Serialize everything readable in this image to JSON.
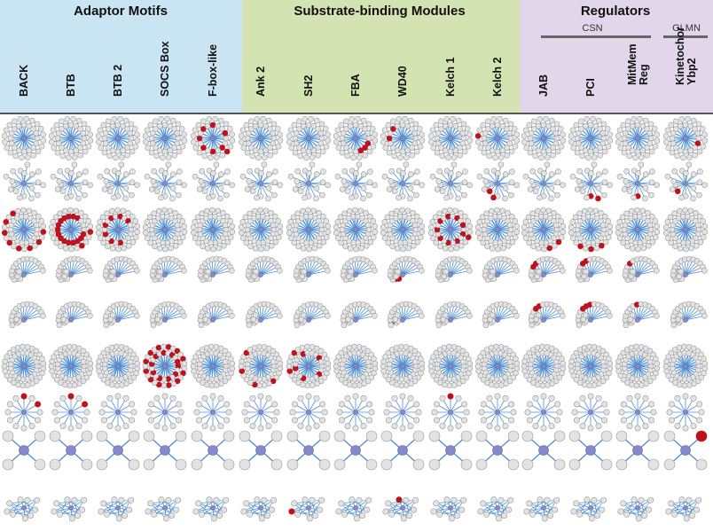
{
  "groups": {
    "adaptor": "Adaptor Motifs",
    "substrate": "Substrate-binding Modules",
    "regulators": "Regulators"
  },
  "subgroups": {
    "csn": "CSN",
    "glmn": "GLMN"
  },
  "columns": [
    "BACK",
    "BTB",
    "BTB 2",
    "SOCS Box",
    "F-box-like",
    "Ank 2",
    "SH2",
    "FBA",
    "WD40",
    "Kelch 1",
    "Kelch 2",
    "JAB",
    "PCI",
    "MitMem\nReg",
    "Kinetochor\nYbp2"
  ],
  "colors": {
    "node": "#e3e3e3",
    "node_stroke": "#9a9a9a",
    "edge": "#4f8fd2",
    "hub": "#8888cc",
    "highlight": "#c0121c"
  },
  "rows": [
    {
      "type": "big-radial",
      "n": 36
    },
    {
      "type": "spread",
      "n": 18
    },
    {
      "type": "dense-radial",
      "n": 40
    },
    {
      "type": "cluster",
      "n": 24
    },
    {
      "type": "cluster",
      "n": 24
    },
    {
      "type": "big-radial",
      "n": 44
    },
    {
      "type": "small-radial",
      "n": 12
    },
    {
      "type": "x",
      "n": 4
    },
    {
      "type": "mesh",
      "n": 9
    }
  ],
  "highlights": [
    {
      "row": 0,
      "col": 4,
      "idx": [
        2,
        4,
        6,
        8,
        10,
        12,
        15,
        18
      ]
    },
    {
      "row": 0,
      "col": 7,
      "idx": [
        1,
        2,
        3
      ]
    },
    {
      "row": 0,
      "col": 8,
      "idx": [
        8,
        10
      ]
    },
    {
      "row": 0,
      "col": 10,
      "idx": [
        26
      ]
    },
    {
      "row": 0,
      "col": 14,
      "idx": [
        1
      ]
    },
    {
      "row": 1,
      "col": 10,
      "idx": [
        5,
        6
      ]
    },
    {
      "row": 1,
      "col": 12,
      "idx": [
        3,
        4
      ]
    },
    {
      "row": 1,
      "col": 13,
      "idx": [
        4
      ]
    },
    {
      "row": 1,
      "col": 14,
      "idx": [
        6
      ]
    },
    {
      "row": 2,
      "col": 0,
      "idx": [
        18,
        20,
        22,
        24,
        26,
        28,
        30,
        32
      ]
    },
    {
      "row": 2,
      "col": 1,
      "idx": [
        1,
        2,
        3,
        4,
        5,
        6,
        7,
        8,
        9,
        10,
        11,
        12,
        13,
        14,
        15,
        18,
        21
      ]
    },
    {
      "row": 2,
      "col": 2,
      "idx": [
        4,
        6,
        8,
        10,
        12,
        14,
        16
      ]
    },
    {
      "row": 2,
      "col": 9,
      "idx": [
        1,
        3,
        5,
        7,
        9,
        11,
        13,
        15,
        17,
        19
      ]
    },
    {
      "row": 2,
      "col": 11,
      "idx": [
        20,
        22
      ]
    },
    {
      "row": 2,
      "col": 12,
      "idx": [
        21,
        23,
        25
      ]
    },
    {
      "row": 3,
      "col": 8,
      "idx": [
        2,
        3,
        5
      ]
    },
    {
      "row": 3,
      "col": 11,
      "idx": [
        14,
        15
      ]
    },
    {
      "row": 3,
      "col": 12,
      "idx": [
        15,
        16
      ]
    },
    {
      "row": 3,
      "col": 13,
      "idx": [
        15
      ]
    },
    {
      "row": 3,
      "col": 14,
      "idx": [
        3
      ]
    },
    {
      "row": 4,
      "col": 8,
      "idx": [
        7,
        8
      ]
    },
    {
      "row": 4,
      "col": 11,
      "idx": [
        15,
        16
      ]
    },
    {
      "row": 4,
      "col": 12,
      "idx": [
        15,
        16,
        17
      ]
    },
    {
      "row": 4,
      "col": 13,
      "idx": [
        17
      ]
    },
    {
      "row": 4,
      "col": 14,
      "idx": [
        0
      ]
    },
    {
      "row": 5,
      "col": 3,
      "idx": [
        0,
        2,
        4,
        6,
        8,
        10,
        12,
        14,
        16,
        18,
        20,
        22,
        24,
        26,
        28,
        30,
        32,
        34,
        36,
        38,
        40,
        42
      ]
    },
    {
      "row": 5,
      "col": 5,
      "idx": [
        22,
        26,
        30,
        34
      ]
    },
    {
      "row": 5,
      "col": 6,
      "idx": [
        2,
        6,
        9,
        13,
        17,
        30,
        34
      ]
    },
    {
      "row": 6,
      "col": 0,
      "idx": [
        9,
        11
      ]
    },
    {
      "row": 6,
      "col": 1,
      "idx": [
        9,
        11
      ]
    },
    {
      "row": 6,
      "col": 9,
      "idx": [
        9
      ]
    },
    {
      "row": 7,
      "col": 14,
      "idx": [
        1
      ]
    },
    {
      "row": 8,
      "col": 6,
      "idx": [
        4
      ]
    },
    {
      "row": 8,
      "col": 8,
      "idx": [
        6
      ]
    }
  ]
}
